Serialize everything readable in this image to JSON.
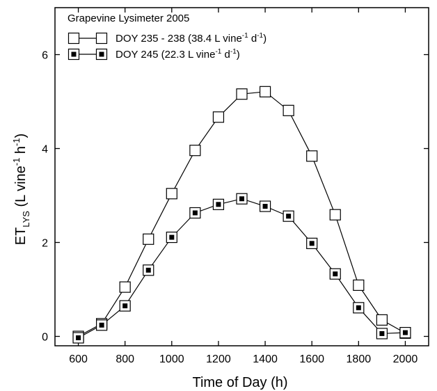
{
  "chart_data": {
    "type": "line",
    "title": "Grapevine Lysimeter 2005",
    "xlabel": "Time of Day (h)",
    "ylabel": {
      "main": "ET",
      "sub": "LYS",
      "unit_open": " (L vine",
      "unit_exp1": "-1",
      "unit_mid": " h",
      "unit_exp2": "-1",
      "unit_close": ")"
    },
    "xlim": [
      500,
      2100
    ],
    "ylim": [
      -0.2,
      7.0
    ],
    "x_ticks": [
      600,
      800,
      1000,
      1200,
      1400,
      1600,
      1800,
      2000
    ],
    "y_ticks": [
      0,
      2,
      4,
      6
    ],
    "grid": false,
    "legend_position": "top-left",
    "series": [
      {
        "name": "DOY 235 - 238",
        "legend": {
          "main": "DOY 235 - 238 (38.4 L vine",
          "exp1": "-1",
          "mid": " d",
          "exp2": "-1",
          "close": ")"
        },
        "marker": "open-square",
        "x": [
          600,
          700,
          800,
          900,
          1000,
          1100,
          1200,
          1300,
          1400,
          1500,
          1600,
          1700,
          1800,
          1900,
          2000
        ],
        "y": [
          0.0,
          0.27,
          1.05,
          2.07,
          3.04,
          3.96,
          4.67,
          5.16,
          5.21,
          4.81,
          3.84,
          2.59,
          1.09,
          0.35,
          0.07
        ]
      },
      {
        "name": "DOY 245",
        "legend": {
          "main": "DOY 245 (22.3 L vine",
          "exp1": "-1",
          "mid": " d",
          "exp2": "-1",
          "close": ")"
        },
        "marker": "dotted-square",
        "x": [
          600,
          700,
          800,
          900,
          1000,
          1100,
          1200,
          1300,
          1400,
          1500,
          1600,
          1700,
          1800,
          1900,
          2000
        ],
        "y": [
          -0.03,
          0.24,
          0.65,
          1.41,
          2.11,
          2.63,
          2.81,
          2.93,
          2.77,
          2.56,
          1.98,
          1.33,
          0.61,
          0.06,
          0.08
        ]
      }
    ]
  }
}
